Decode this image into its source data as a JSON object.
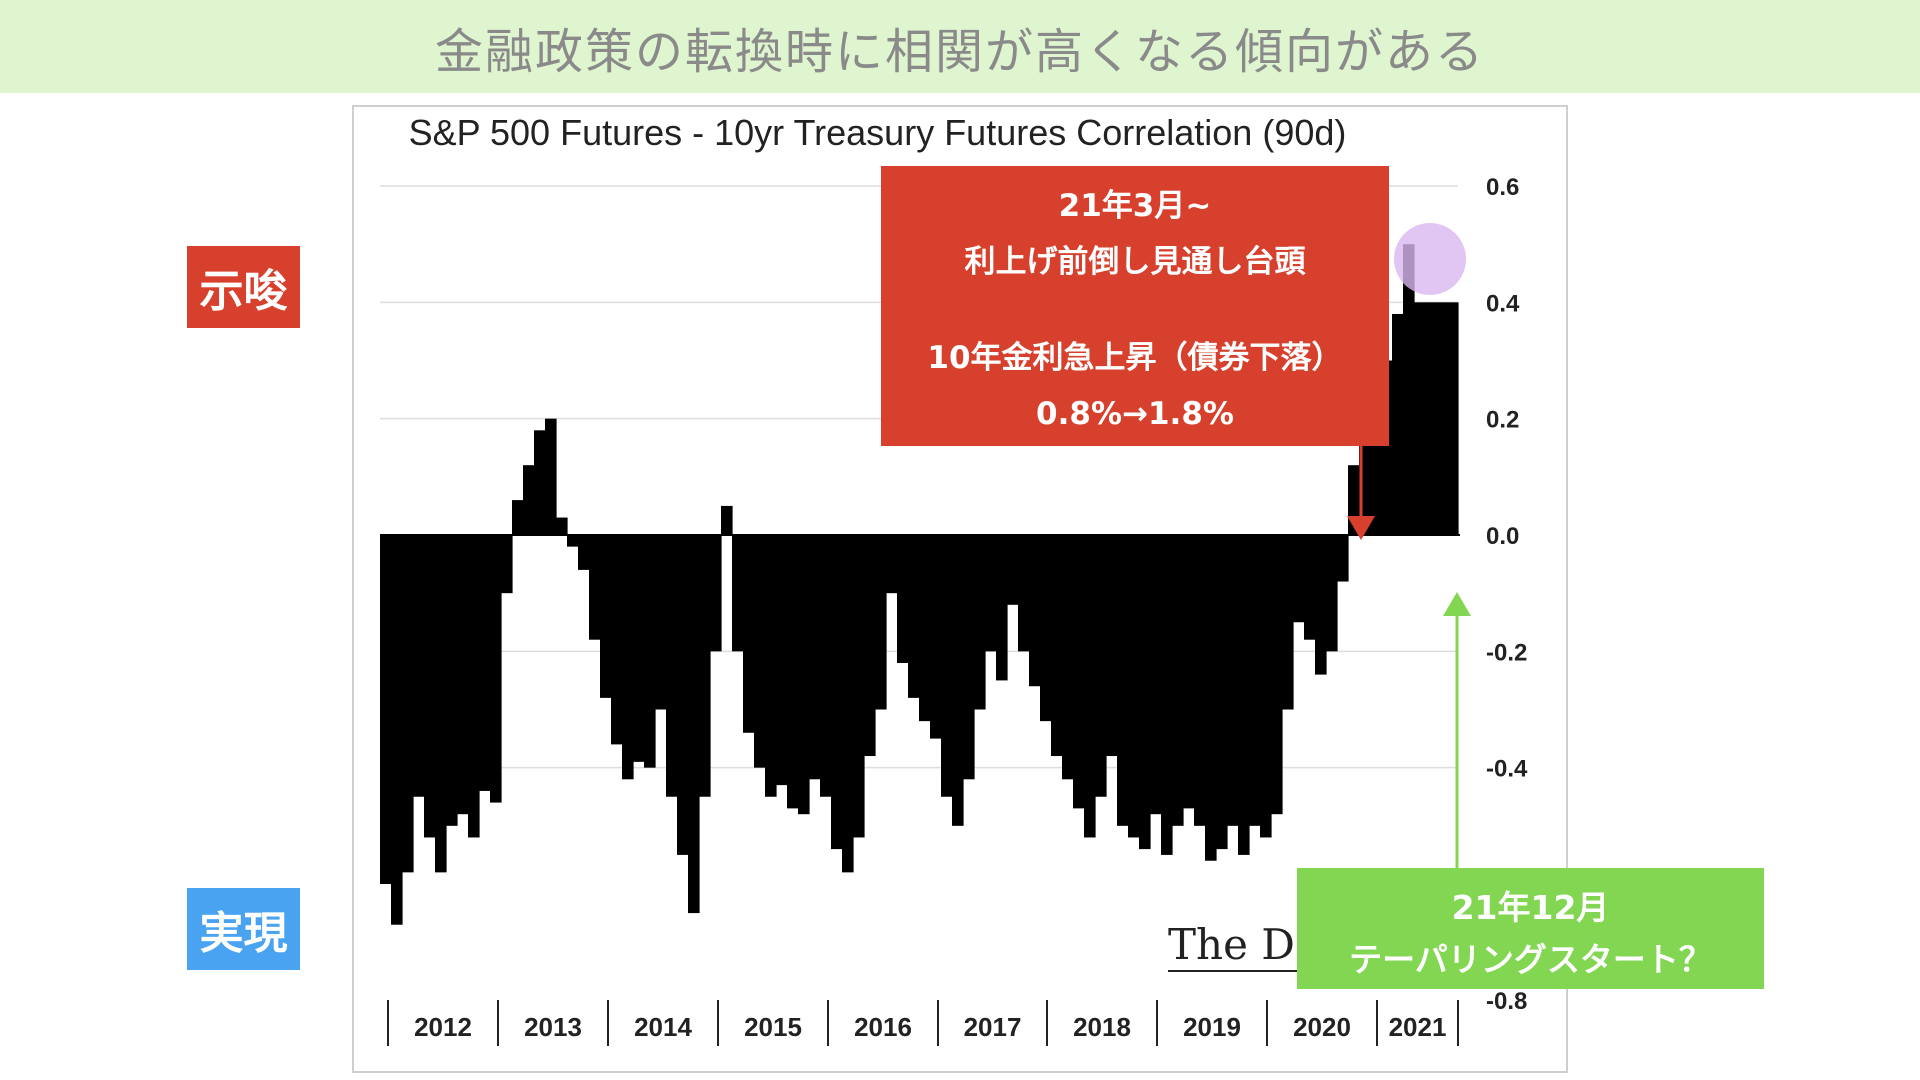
{
  "banner": {
    "title": "金融政策の転換時に相関が高くなる傾向がある"
  },
  "side_tags": {
    "suggest": "示唆",
    "realize": "実現"
  },
  "annotations": {
    "red": {
      "line1": "21年3月~",
      "line2": "利上げ前倒し見通し台頭",
      "line3": "10年金利急上昇（債券下落）",
      "line4": "0.8%→1.8%"
    },
    "green": {
      "line1": "21年12月",
      "line2": "テーパリングスタート？"
    }
  },
  "watermark": "The Da",
  "colors": {
    "banner_bg": "#dff5cf",
    "red_note": "#d7402c",
    "green_note": "#82d652",
    "suggest_tag": "#d7402c",
    "realize_tag": "#4aa3f0",
    "highlight": "#d9b8f0",
    "bars": "#000000"
  },
  "chart_data": {
    "type": "area",
    "title": "S&P 500 Futures - 10yr Treasury Futures Correlation (90d)",
    "xlabel": "",
    "ylabel": "",
    "ylim": [
      -0.8,
      0.6
    ],
    "yticks": [
      "0.6",
      "0.4",
      "0.2",
      "0.0",
      "-0.2",
      "-0.4",
      "-0.8"
    ],
    "xticks": [
      "2012",
      "2013",
      "2014",
      "2015",
      "2016",
      "2017",
      "2018",
      "2019",
      "2020",
      "2021"
    ],
    "grid": true,
    "series": [
      {
        "x": [
          2011.9,
          2012.0,
          2012.1,
          2012.2,
          2012.3,
          2012.4,
          2012.5,
          2012.6,
          2012.7,
          2012.8,
          2012.9,
          2013.0,
          2013.1,
          2013.2,
          2013.3,
          2013.4,
          2013.5,
          2013.6,
          2013.7,
          2013.8,
          2013.9,
          2014.0,
          2014.1,
          2014.2,
          2014.3,
          2014.4,
          2014.5,
          2014.6,
          2014.7,
          2014.8,
          2014.9,
          2015.0,
          2015.1,
          2015.2,
          2015.3,
          2015.4,
          2015.5,
          2015.6,
          2015.7,
          2015.8,
          2015.9,
          2016.0,
          2016.1,
          2016.2,
          2016.3,
          2016.4,
          2016.5,
          2016.6,
          2016.7,
          2016.8,
          2016.9,
          2017.0,
          2017.1,
          2017.2,
          2017.3,
          2017.4,
          2017.5,
          2017.6,
          2017.7,
          2017.8,
          2017.9,
          2018.0,
          2018.1,
          2018.2,
          2018.3,
          2018.4,
          2018.5,
          2018.6,
          2018.7,
          2018.8,
          2018.9,
          2019.0,
          2019.1,
          2019.2,
          2019.3,
          2019.4,
          2019.5,
          2019.6,
          2019.7,
          2019.8,
          2019.9,
          2020.0,
          2020.1,
          2020.2,
          2020.3,
          2020.4,
          2020.5,
          2020.6,
          2020.7,
          2020.8,
          2020.9,
          2021.0,
          2021.1,
          2021.2,
          2021.3,
          2021.4,
          2021.5,
          2021.6
        ],
        "values": [
          -0.6,
          -0.67,
          -0.58,
          -0.45,
          -0.52,
          -0.58,
          -0.5,
          -0.48,
          -0.52,
          -0.44,
          -0.46,
          -0.1,
          0.06,
          0.12,
          0.18,
          0.2,
          0.03,
          -0.02,
          -0.06,
          -0.18,
          -0.28,
          -0.36,
          -0.42,
          -0.39,
          -0.4,
          -0.3,
          -0.45,
          -0.55,
          -0.65,
          -0.45,
          -0.2,
          0.05,
          -0.2,
          -0.34,
          -0.4,
          -0.45,
          -0.43,
          -0.47,
          -0.48,
          -0.42,
          -0.45,
          -0.54,
          -0.58,
          -0.52,
          -0.38,
          -0.3,
          -0.1,
          -0.22,
          -0.28,
          -0.32,
          -0.35,
          -0.45,
          -0.5,
          -0.42,
          -0.3,
          -0.2,
          -0.25,
          -0.12,
          -0.2,
          -0.26,
          -0.32,
          -0.38,
          -0.42,
          -0.47,
          -0.52,
          -0.45,
          -0.38,
          -0.5,
          -0.52,
          -0.54,
          -0.48,
          -0.55,
          -0.5,
          -0.47,
          -0.5,
          -0.56,
          -0.54,
          -0.5,
          -0.55,
          -0.5,
          -0.52,
          -0.48,
          -0.3,
          -0.15,
          -0.18,
          -0.24,
          -0.2,
          -0.08,
          0.12,
          0.26,
          0.32,
          0.3,
          0.38,
          0.5,
          0.4,
          0.4,
          0.4,
          0.4
        ]
      }
    ]
  }
}
